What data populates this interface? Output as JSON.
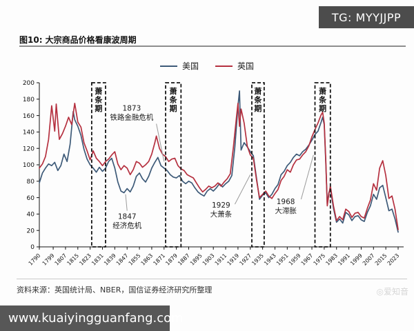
{
  "header": {
    "tg_label": "TG: MYYJJPP"
  },
  "figure": {
    "title": "图10: 大宗商品价格看康波周期"
  },
  "source": {
    "label": "资料来源：英国统计局、NBER，国信证券经济研究所整理"
  },
  "watermark": {
    "label": "◎爱知音"
  },
  "footer": {
    "url": "www.kuaiyingguanfang.com"
  },
  "chart_data": {
    "type": "line",
    "title": "大宗商品价格看康波周期",
    "xlabel": "",
    "ylabel": "",
    "xlim": [
      1790,
      2023
    ],
    "ylim": [
      0,
      200
    ],
    "yticks": [
      0,
      20,
      40,
      60,
      80,
      100,
      120,
      140,
      160,
      180,
      200
    ],
    "xticks": [
      1790,
      1799,
      1807,
      1815,
      1823,
      1831,
      1839,
      1847,
      1855,
      1863,
      1871,
      1879,
      1887,
      1895,
      1903,
      1911,
      1919,
      1927,
      1935,
      1943,
      1951,
      1959,
      1967,
      1975,
      1983,
      1991,
      1999,
      2007,
      2015,
      2023
    ],
    "grid": false,
    "legend_position": "top",
    "series": [
      {
        "name": "美国",
        "color": "#3d5a78",
        "points": [
          [
            1790,
            78
          ],
          [
            1792,
            90
          ],
          [
            1794,
            96
          ],
          [
            1796,
            101
          ],
          [
            1798,
            99
          ],
          [
            1800,
            103
          ],
          [
            1802,
            93
          ],
          [
            1804,
            99
          ],
          [
            1806,
            113
          ],
          [
            1808,
            104
          ],
          [
            1810,
            125
          ],
          [
            1812,
            165
          ],
          [
            1813,
            155
          ],
          [
            1815,
            147
          ],
          [
            1817,
            136
          ],
          [
            1819,
            119
          ],
          [
            1821,
            107
          ],
          [
            1823,
            100
          ],
          [
            1825,
            96
          ],
          [
            1827,
            91
          ],
          [
            1829,
            97
          ],
          [
            1831,
            92
          ],
          [
            1833,
            96
          ],
          [
            1835,
            104
          ],
          [
            1837,
            108
          ],
          [
            1839,
            96
          ],
          [
            1841,
            79
          ],
          [
            1843,
            68
          ],
          [
            1845,
            66
          ],
          [
            1847,
            71
          ],
          [
            1849,
            67
          ],
          [
            1851,
            74
          ],
          [
            1853,
            86
          ],
          [
            1855,
            90
          ],
          [
            1857,
            83
          ],
          [
            1859,
            79
          ],
          [
            1861,
            86
          ],
          [
            1863,
            96
          ],
          [
            1865,
            103
          ],
          [
            1867,
            109
          ],
          [
            1869,
            99
          ],
          [
            1871,
            96
          ],
          [
            1873,
            93
          ],
          [
            1875,
            88
          ],
          [
            1877,
            85
          ],
          [
            1879,
            84
          ],
          [
            1881,
            87
          ],
          [
            1883,
            80
          ],
          [
            1885,
            77
          ],
          [
            1887,
            80
          ],
          [
            1889,
            78
          ],
          [
            1891,
            72
          ],
          [
            1893,
            67
          ],
          [
            1895,
            64
          ],
          [
            1897,
            62
          ],
          [
            1899,
            68
          ],
          [
            1901,
            71
          ],
          [
            1903,
            68
          ],
          [
            1905,
            72
          ],
          [
            1907,
            77
          ],
          [
            1909,
            73
          ],
          [
            1911,
            77
          ],
          [
            1913,
            80
          ],
          [
            1915,
            87
          ],
          [
            1917,
            122
          ],
          [
            1919,
            172
          ],
          [
            1920,
            190
          ],
          [
            1921,
            118
          ],
          [
            1923,
            127
          ],
          [
            1925,
            122
          ],
          [
            1927,
            116
          ],
          [
            1929,
            111
          ],
          [
            1931,
            84
          ],
          [
            1933,
            58
          ],
          [
            1935,
            63
          ],
          [
            1937,
            66
          ],
          [
            1939,
            60
          ],
          [
            1941,
            64
          ],
          [
            1943,
            71
          ],
          [
            1945,
            76
          ],
          [
            1947,
            88
          ],
          [
            1949,
            92
          ],
          [
            1951,
            99
          ],
          [
            1953,
            103
          ],
          [
            1955,
            109
          ],
          [
            1957,
            113
          ],
          [
            1959,
            111
          ],
          [
            1961,
            116
          ],
          [
            1963,
            119
          ],
          [
            1965,
            124
          ],
          [
            1967,
            130
          ],
          [
            1969,
            137
          ],
          [
            1971,
            141
          ],
          [
            1973,
            152
          ],
          [
            1974,
            158
          ],
          [
            1975,
            149
          ],
          [
            1976,
            104
          ],
          [
            1977,
            52
          ],
          [
            1978,
            66
          ],
          [
            1979,
            71
          ],
          [
            1981,
            47
          ],
          [
            1983,
            30
          ],
          [
            1985,
            34
          ],
          [
            1987,
            29
          ],
          [
            1989,
            42
          ],
          [
            1991,
            39
          ],
          [
            1993,
            32
          ],
          [
            1995,
            37
          ],
          [
            1997,
            38
          ],
          [
            1999,
            33
          ],
          [
            2001,
            31
          ],
          [
            2003,
            42
          ],
          [
            2005,
            50
          ],
          [
            2007,
            64
          ],
          [
            2009,
            58
          ],
          [
            2011,
            72
          ],
          [
            2013,
            75
          ],
          [
            2015,
            60
          ],
          [
            2017,
            44
          ],
          [
            2019,
            46
          ],
          [
            2021,
            34
          ],
          [
            2023,
            18
          ]
        ]
      },
      {
        "name": "英国",
        "color": "#b5303f",
        "points": [
          [
            1790,
            96
          ],
          [
            1792,
            101
          ],
          [
            1794,
            110
          ],
          [
            1796,
            131
          ],
          [
            1798,
            172
          ],
          [
            1800,
            141
          ],
          [
            1801,
            174
          ],
          [
            1803,
            131
          ],
          [
            1805,
            138
          ],
          [
            1807,
            147
          ],
          [
            1809,
            158
          ],
          [
            1811,
            149
          ],
          [
            1813,
            175
          ],
          [
            1815,
            152
          ],
          [
            1817,
            146
          ],
          [
            1819,
            127
          ],
          [
            1821,
            117
          ],
          [
            1823,
            106
          ],
          [
            1825,
            117
          ],
          [
            1827,
            108
          ],
          [
            1829,
            104
          ],
          [
            1831,
            99
          ],
          [
            1833,
            104
          ],
          [
            1835,
            107
          ],
          [
            1837,
            112
          ],
          [
            1839,
            116
          ],
          [
            1841,
            101
          ],
          [
            1843,
            94
          ],
          [
            1845,
            99
          ],
          [
            1847,
            96
          ],
          [
            1849,
            88
          ],
          [
            1851,
            94
          ],
          [
            1853,
            104
          ],
          [
            1855,
            102
          ],
          [
            1857,
            97
          ],
          [
            1859,
            100
          ],
          [
            1861,
            104
          ],
          [
            1863,
            113
          ],
          [
            1865,
            127
          ],
          [
            1866,
            135
          ],
          [
            1868,
            120
          ],
          [
            1870,
            113
          ],
          [
            1872,
            110
          ],
          [
            1874,
            104
          ],
          [
            1876,
            107
          ],
          [
            1878,
            108
          ],
          [
            1880,
            99
          ],
          [
            1882,
            95
          ],
          [
            1884,
            93
          ],
          [
            1886,
            88
          ],
          [
            1888,
            86
          ],
          [
            1890,
            84
          ],
          [
            1892,
            78
          ],
          [
            1894,
            72
          ],
          [
            1896,
            67
          ],
          [
            1898,
            70
          ],
          [
            1900,
            74
          ],
          [
            1902,
            72
          ],
          [
            1904,
            74
          ],
          [
            1906,
            78
          ],
          [
            1908,
            74
          ],
          [
            1910,
            79
          ],
          [
            1912,
            83
          ],
          [
            1914,
            89
          ],
          [
            1916,
            121
          ],
          [
            1918,
            158
          ],
          [
            1919,
            175
          ],
          [
            1920,
            147
          ],
          [
            1921,
            168
          ],
          [
            1923,
            151
          ],
          [
            1925,
            123
          ],
          [
            1927,
            112
          ],
          [
            1929,
            108
          ],
          [
            1931,
            82
          ],
          [
            1933,
            60
          ],
          [
            1935,
            64
          ],
          [
            1937,
            68
          ],
          [
            1939,
            62
          ],
          [
            1941,
            59
          ],
          [
            1943,
            65
          ],
          [
            1945,
            70
          ],
          [
            1947,
            81
          ],
          [
            1949,
            86
          ],
          [
            1951,
            94
          ],
          [
            1953,
            91
          ],
          [
            1955,
            100
          ],
          [
            1957,
            106
          ],
          [
            1959,
            107
          ],
          [
            1961,
            112
          ],
          [
            1963,
            116
          ],
          [
            1965,
            123
          ],
          [
            1967,
            134
          ],
          [
            1969,
            143
          ],
          [
            1971,
            151
          ],
          [
            1973,
            161
          ],
          [
            1974,
            164
          ],
          [
            1975,
            151
          ],
          [
            1976,
            107
          ],
          [
            1977,
            50
          ],
          [
            1978,
            64
          ],
          [
            1979,
            74
          ],
          [
            1981,
            50
          ],
          [
            1983,
            32
          ],
          [
            1985,
            37
          ],
          [
            1987,
            33
          ],
          [
            1989,
            46
          ],
          [
            1991,
            43
          ],
          [
            1993,
            36
          ],
          [
            1995,
            41
          ],
          [
            1997,
            42
          ],
          [
            1999,
            37
          ],
          [
            2001,
            35
          ],
          [
            2003,
            47
          ],
          [
            2005,
            57
          ],
          [
            2007,
            77
          ],
          [
            2009,
            69
          ],
          [
            2011,
            96
          ],
          [
            2013,
            105
          ],
          [
            2015,
            87
          ],
          [
            2017,
            59
          ],
          [
            2019,
            62
          ],
          [
            2021,
            46
          ],
          [
            2023,
            21
          ]
        ]
      }
    ],
    "depression_boxes": [
      {
        "label": "萧条期",
        "from": 1824,
        "to": 1833
      },
      {
        "label": "萧条期",
        "from": 1872,
        "to": 1882
      },
      {
        "label": "萧条期",
        "from": 1928,
        "to": 1936
      },
      {
        "label": "萧条期",
        "from": 1969,
        "to": 1979
      }
    ],
    "annotations": [
      {
        "lines": [
          "1873",
          "铁路金融危机"
        ],
        "x": 1850,
        "y": 166,
        "leader": {
          "from": [
            1866,
            150
          ],
          "to": [
            1871,
            104
          ]
        }
      },
      {
        "lines": [
          "1847",
          "经济危机"
        ],
        "x": 1847,
        "y": 34,
        "leader": {
          "from": [
            1847,
            44
          ],
          "to": [
            1846,
            64
          ]
        }
      },
      {
        "lines": [
          "1929",
          "大萧条"
        ],
        "x": 1908,
        "y": 48,
        "leader": {
          "from": [
            1917,
            52
          ],
          "to": [
            1927,
            88
          ]
        }
      },
      {
        "lines": [
          "1968",
          "大滞胀"
        ],
        "x": 1950,
        "y": 52,
        "leader": {
          "from": [
            1960,
            58
          ],
          "to": [
            1968,
            112
          ]
        }
      }
    ]
  }
}
